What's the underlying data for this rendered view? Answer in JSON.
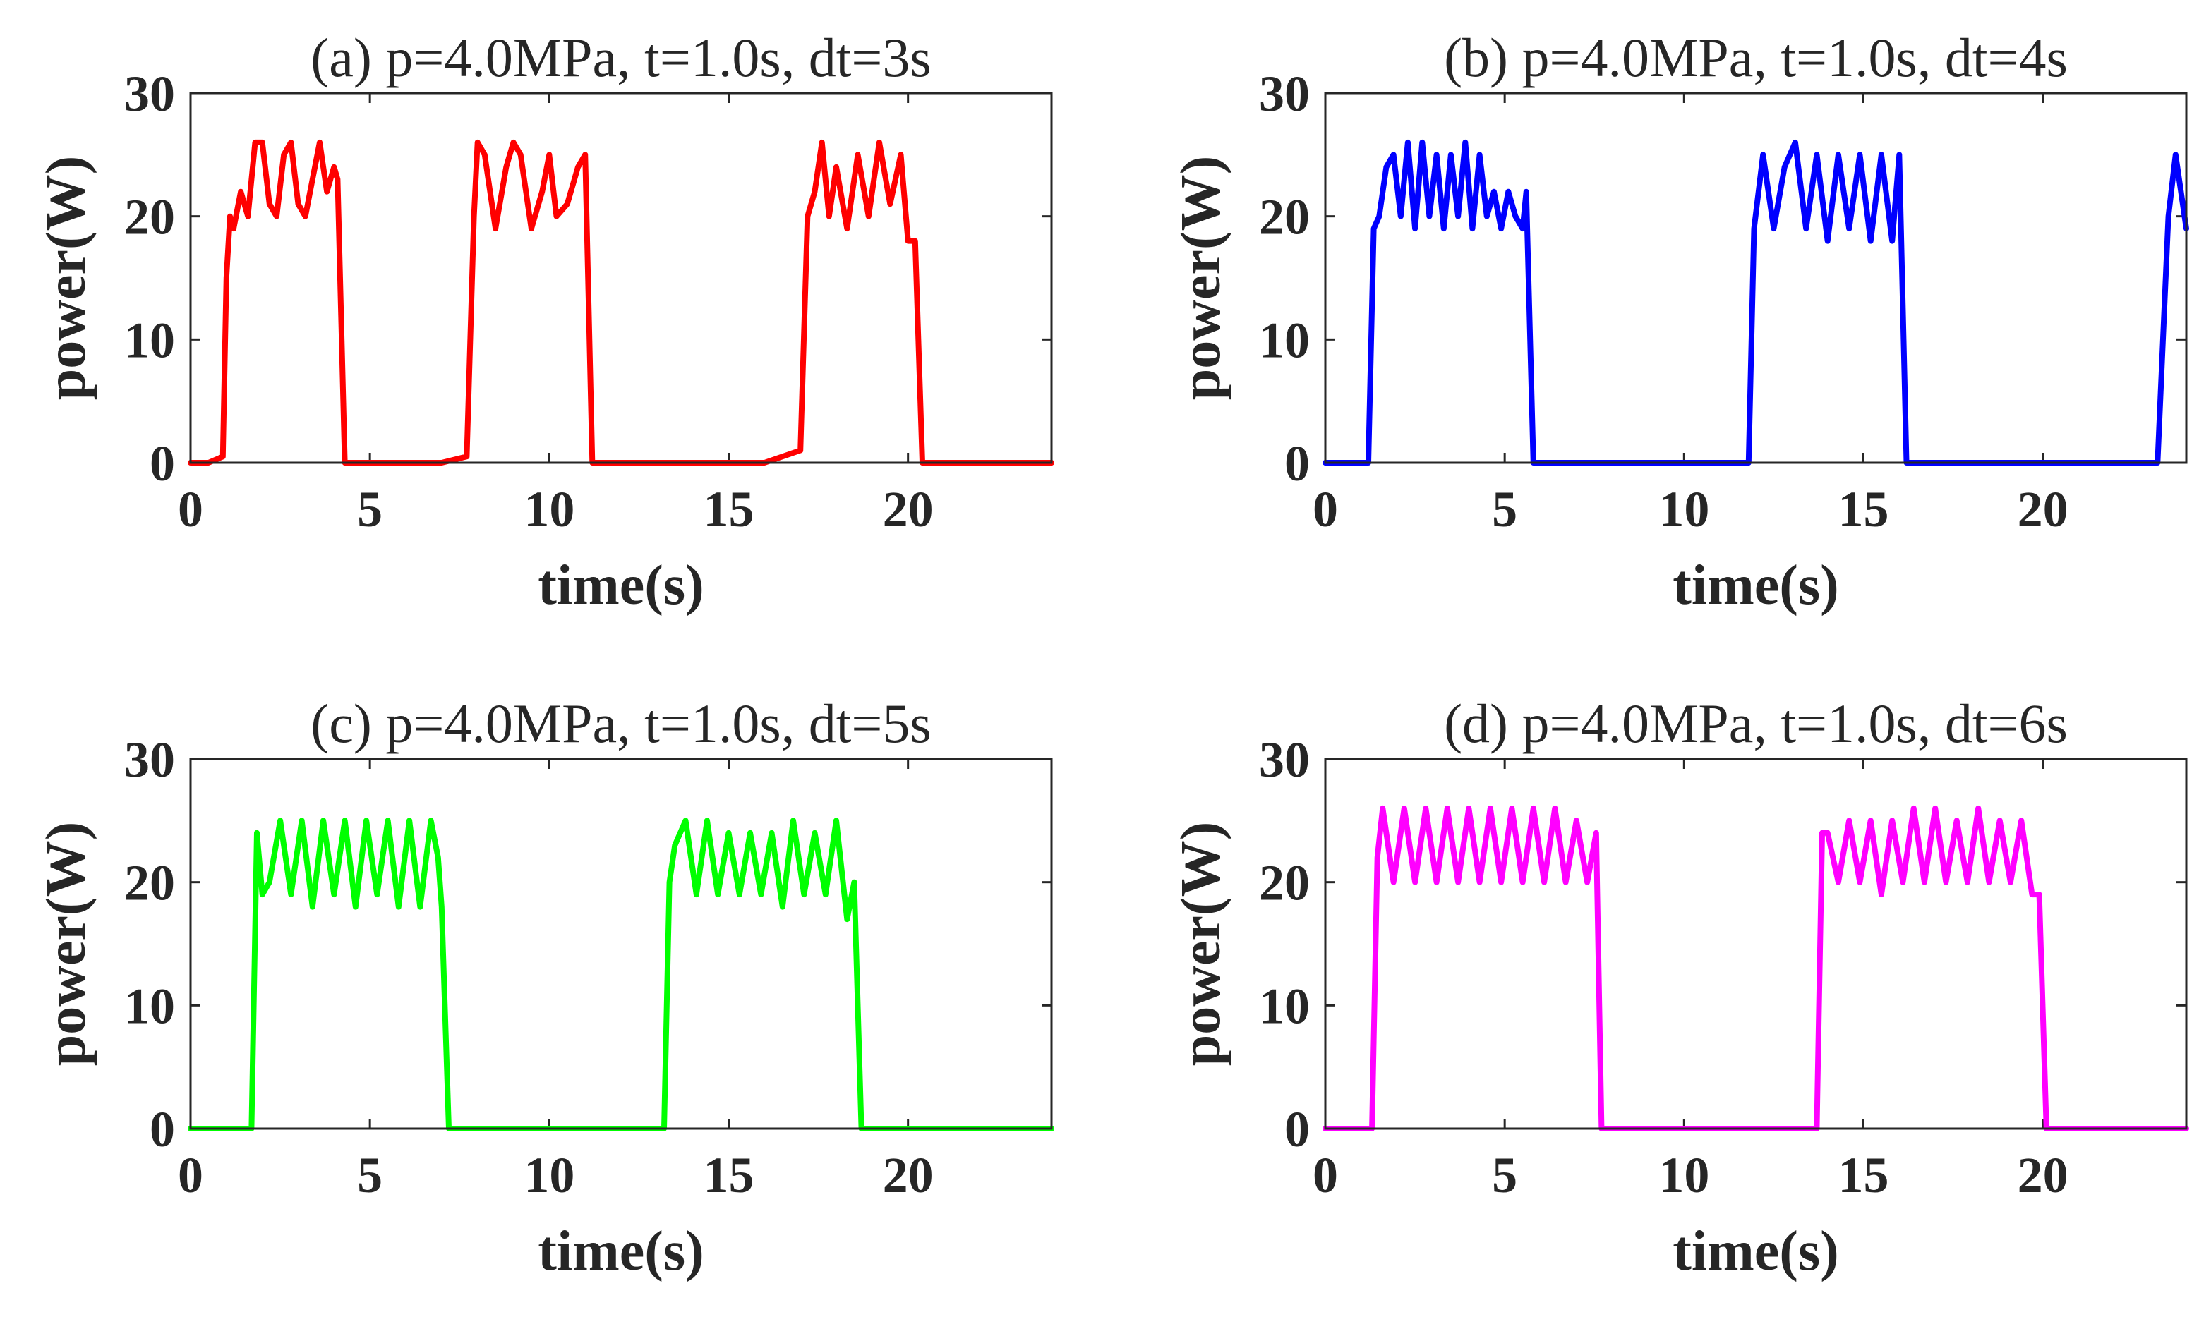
{
  "chart_data": [
    {
      "type": "line",
      "title": "(a) p=4.0MPa, t=1.0s, dt=3s",
      "xlabel": "time(s)",
      "ylabel": "power(W)",
      "xlim": [
        0,
        24
      ],
      "xticks": [
        0,
        5,
        10,
        15,
        20
      ],
      "ylim": [
        0,
        30
      ],
      "yticks": [
        0,
        10,
        20,
        30
      ],
      "series": [
        {
          "color": "#ff0000",
          "x": [
            0,
            0.5,
            0.9,
            1.0,
            1.1,
            1.2,
            1.4,
            1.6,
            1.8,
            2.0,
            2.2,
            2.4,
            2.6,
            2.8,
            3.0,
            3.2,
            3.4,
            3.6,
            3.8,
            4.0,
            4.1,
            4.3,
            5,
            6,
            7,
            7.7,
            7.9,
            8.0,
            8.2,
            8.5,
            8.8,
            9.0,
            9.2,
            9.5,
            9.8,
            10.0,
            10.2,
            10.5,
            10.8,
            11.0,
            11.2,
            12,
            14,
            16,
            17.0,
            17.2,
            17.4,
            17.6,
            17.8,
            18.0,
            18.3,
            18.6,
            18.9,
            19.2,
            19.5,
            19.8,
            20.0,
            20.2,
            20.4,
            22,
            24
          ],
          "values": [
            0,
            0,
            0.5,
            15,
            20,
            19,
            22,
            20,
            26,
            26,
            21,
            20,
            25,
            26,
            21,
            20,
            23,
            26,
            22,
            24,
            23,
            0,
            0,
            0,
            0,
            0.5,
            20,
            26,
            25,
            19,
            24,
            26,
            25,
            19,
            22,
            25,
            20,
            21,
            24,
            25,
            0,
            0,
            0,
            0,
            1,
            20,
            22,
            26,
            20,
            24,
            19,
            25,
            20,
            26,
            21,
            25,
            18,
            18,
            0,
            0,
            0
          ]
        }
      ]
    },
    {
      "type": "line",
      "title": "(b) p=4.0MPa, t=1.0s, dt=4s",
      "xlabel": "time(s)",
      "ylabel": "power(W)",
      "xlim": [
        0,
        24
      ],
      "xticks": [
        0,
        5,
        10,
        15,
        20
      ],
      "ylim": [
        0,
        30
      ],
      "yticks": [
        0,
        10,
        20,
        30
      ],
      "series": [
        {
          "color": "#0000ff",
          "x": [
            0,
            1.2,
            1.35,
            1.5,
            1.7,
            1.9,
            2.1,
            2.3,
            2.5,
            2.7,
            2.9,
            3.1,
            3.3,
            3.5,
            3.7,
            3.9,
            4.1,
            4.3,
            4.5,
            4.7,
            4.9,
            5.1,
            5.3,
            5.5,
            5.6,
            5.8,
            7,
            9,
            11,
            11.8,
            11.95,
            12.2,
            12.5,
            12.8,
            13.1,
            13.4,
            13.7,
            14.0,
            14.3,
            14.6,
            14.9,
            15.2,
            15.5,
            15.8,
            16.0,
            16.2,
            16.4,
            18,
            20,
            22,
            23.2,
            23.5,
            23.7,
            24
          ],
          "values": [
            0,
            0,
            19,
            20,
            24,
            25,
            20,
            26,
            19,
            26,
            20,
            25,
            19,
            25,
            20,
            26,
            19,
            25,
            20,
            22,
            19,
            22,
            20,
            19,
            22,
            0,
            0,
            0,
            0,
            0,
            19,
            25,
            19,
            24,
            26,
            19,
            25,
            18,
            25,
            19,
            25,
            18,
            25,
            18,
            25,
            0,
            0,
            0,
            0,
            0,
            0,
            20,
            25,
            19
          ]
        }
      ]
    },
    {
      "type": "line",
      "title": "(c) p=4.0MPa, t=1.0s, dt=5s",
      "xlabel": "time(s)",
      "ylabel": "power(W)",
      "xlim": [
        0,
        24
      ],
      "xticks": [
        0,
        5,
        10,
        15,
        20
      ],
      "ylim": [
        0,
        30
      ],
      "yticks": [
        0,
        10,
        20,
        30
      ],
      "series": [
        {
          "color": "#00ff00",
          "x": [
            0,
            1.7,
            1.85,
            2.0,
            2.2,
            2.5,
            2.8,
            3.1,
            3.4,
            3.7,
            4.0,
            4.3,
            4.6,
            4.9,
            5.2,
            5.5,
            5.8,
            6.1,
            6.4,
            6.7,
            6.9,
            7.0,
            7.2,
            9,
            11,
            13.2,
            13.35,
            13.5,
            13.8,
            14.1,
            14.4,
            14.7,
            15.0,
            15.3,
            15.6,
            15.9,
            16.2,
            16.5,
            16.8,
            17.1,
            17.4,
            17.7,
            18.0,
            18.3,
            18.5,
            18.7,
            20,
            22,
            24
          ],
          "values": [
            0,
            0,
            24,
            19,
            20,
            25,
            19,
            25,
            18,
            25,
            19,
            25,
            18,
            25,
            19,
            25,
            18,
            25,
            18,
            25,
            22,
            18,
            0,
            0,
            0,
            0,
            20,
            23,
            25,
            19,
            25,
            19,
            24,
            19,
            24,
            19,
            24,
            18,
            25,
            19,
            24,
            19,
            25,
            17,
            20,
            0,
            0,
            0,
            0
          ]
        }
      ]
    },
    {
      "type": "line",
      "title": "(d) p=4.0MPa, t=1.0s, dt=6s",
      "xlabel": "time(s)",
      "ylabel": "power(W)",
      "xlim": [
        0,
        24
      ],
      "xticks": [
        0,
        5,
        10,
        15,
        20
      ],
      "ylim": [
        0,
        30
      ],
      "yticks": [
        0,
        10,
        20,
        30
      ],
      "series": [
        {
          "color": "#ff00ff",
          "x": [
            0,
            1.3,
            1.45,
            1.6,
            1.9,
            2.2,
            2.5,
            2.8,
            3.1,
            3.4,
            3.7,
            4.0,
            4.3,
            4.6,
            4.9,
            5.2,
            5.5,
            5.8,
            6.1,
            6.4,
            6.7,
            7.0,
            7.3,
            7.55,
            7.7,
            9,
            11,
            13.7,
            13.85,
            14.0,
            14.3,
            14.6,
            14.9,
            15.2,
            15.5,
            15.8,
            16.1,
            16.4,
            16.7,
            17.0,
            17.3,
            17.6,
            17.9,
            18.2,
            18.5,
            18.8,
            19.1,
            19.4,
            19.7,
            19.9,
            20.1,
            22,
            24
          ],
          "values": [
            0,
            0,
            22,
            26,
            20,
            26,
            20,
            26,
            20,
            26,
            20,
            26,
            20,
            26,
            20,
            26,
            20,
            26,
            20,
            26,
            20,
            25,
            20,
            24,
            0,
            0,
            0,
            0,
            24,
            24,
            20,
            25,
            20,
            25,
            19,
            25,
            20,
            26,
            20,
            26,
            20,
            25,
            20,
            26,
            20,
            25,
            20,
            25,
            19,
            19,
            0,
            0,
            0
          ]
        }
      ]
    }
  ]
}
